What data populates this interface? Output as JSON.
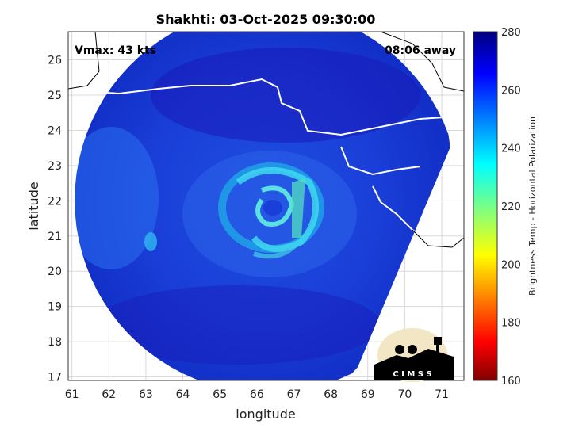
{
  "chart_data": {
    "type": "heatmap",
    "title": "Shakhti: 03-Oct-2025 09:30:00",
    "xlabel": "longitude",
    "ylabel": "latitude",
    "xlim": [
      60.9,
      71.6
    ],
    "ylim": [
      16.9,
      26.8
    ],
    "xticks": [
      "61",
      "62",
      "63",
      "64",
      "65",
      "66",
      "67",
      "68",
      "69",
      "70",
      "71"
    ],
    "yticks": [
      "17",
      "18",
      "19",
      "20",
      "21",
      "22",
      "23",
      "24",
      "25",
      "26"
    ],
    "grid": true,
    "annotations": {
      "vmax": "Vmax: 43 kts",
      "away": "08:06 away"
    },
    "storm_center": {
      "lon": 66.5,
      "lat": 21.9
    },
    "colorbar": {
      "label": "Brightness Temp - Horizontal Polarization",
      "range": [
        160,
        280
      ],
      "ticks": [
        "280",
        "260",
        "240",
        "220",
        "200",
        "180",
        "160"
      ]
    },
    "logo_text": "C I M S S"
  }
}
